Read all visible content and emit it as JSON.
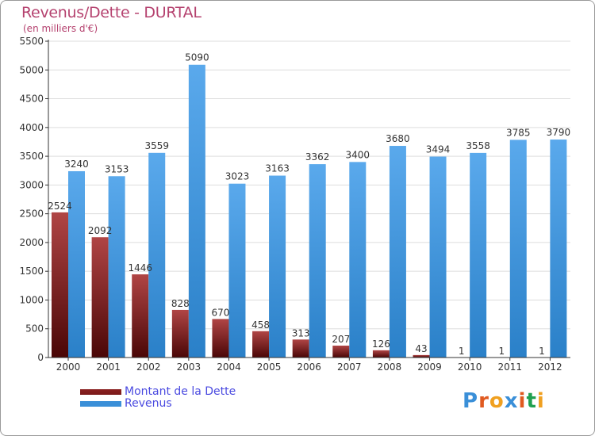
{
  "header": {
    "title": "Revenus/Dette - DURTAL",
    "subtitle": "(en milliers d'€)"
  },
  "legend": {
    "debt_label": "Montant de la Dette",
    "revenue_label": "Revenus"
  },
  "logo": {
    "text": "Proxiti",
    "colors": [
      "#3a8fd8",
      "#e05a20",
      "#f0a020",
      "#3a8fd8",
      "#e05a20",
      "#20a050",
      "#f0a020"
    ]
  },
  "colors": {
    "debt": "#7a1a1a",
    "debt_light": "#b04040",
    "revenue": "#3a8fd8",
    "revenue_light": "#6fb3ec",
    "grid": "#dddddd",
    "axis": "#333333"
  },
  "chart_data": {
    "type": "bar",
    "categories": [
      "2000",
      "2001",
      "2002",
      "2003",
      "2004",
      "2005",
      "2006",
      "2007",
      "2008",
      "2009",
      "2010",
      "2011",
      "2012"
    ],
    "series": [
      {
        "name": "Montant de la Dette",
        "values": [
          2524,
          2092,
          1446,
          828,
          670,
          458,
          313,
          207,
          126,
          43,
          1,
          1,
          1
        ]
      },
      {
        "name": "Revenus",
        "values": [
          3240,
          3153,
          3559,
          5090,
          3023,
          3163,
          3362,
          3400,
          3680,
          3494,
          3558,
          3785,
          3790
        ]
      }
    ],
    "data_labels": {
      "debt": [
        "2524",
        "2092",
        "1446",
        "828",
        "670",
        "458",
        "313",
        "207",
        "126",
        "43",
        "1",
        "1",
        "1"
      ],
      "revenue": [
        "3240",
        "3153",
        "3559",
        "5090",
        "3023",
        "3163",
        "3362",
        "3400",
        "3680",
        "3494",
        "3558",
        "3785",
        "3790"
      ]
    },
    "yticks": [
      "0",
      "500",
      "1000",
      "1500",
      "2000",
      "2500",
      "3000",
      "3500",
      "4000",
      "4500",
      "5000",
      "5500"
    ],
    "ylim": [
      0,
      5500
    ],
    "grid": true,
    "legend_position": "bottom-left"
  }
}
